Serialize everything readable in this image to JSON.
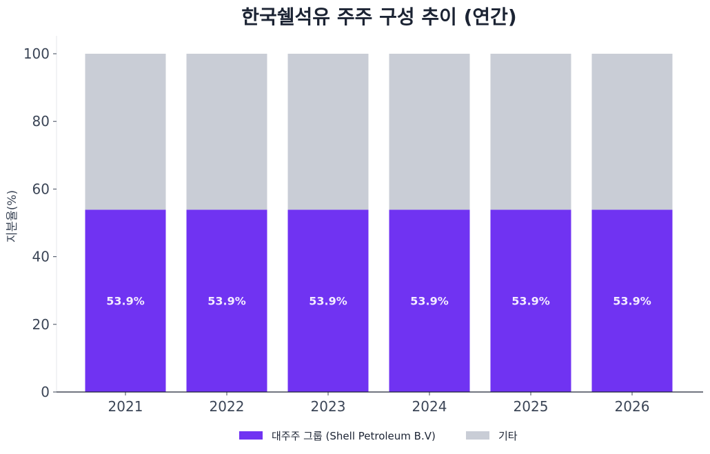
{
  "chart_data": {
    "type": "bar",
    "stacked": true,
    "title": "한국쉘석유 주주 구성 추이 (연간)",
    "xlabel": "",
    "ylabel": "지분율(%)",
    "ylim": [
      0,
      100
    ],
    "yticks": [
      0,
      20,
      40,
      60,
      80,
      100
    ],
    "categories": [
      "2021",
      "2022",
      "2023",
      "2024",
      "2025",
      "2026"
    ],
    "series": [
      {
        "name": "대주주 그룹 (Shell Petroleum B.V)",
        "values": [
          53.9,
          53.9,
          53.9,
          53.9,
          53.9,
          53.9
        ],
        "color": "#7033f2",
        "labels": [
          "53.9%",
          "53.9%",
          "53.9%",
          "53.9%",
          "53.9%",
          "53.9%"
        ]
      },
      {
        "name": "기타",
        "values": [
          46.1,
          46.1,
          46.1,
          46.1,
          46.1,
          46.1
        ],
        "color": "#c9cdd6"
      }
    ],
    "grid": false,
    "legend_position": "bottom-center"
  },
  "colors": {
    "axis": "#1b2333",
    "left_axis": "#e5e7eb",
    "tick_text": "#3b4556",
    "title_text": "#1b2333",
    "data_label_text": "#f3ecff"
  }
}
